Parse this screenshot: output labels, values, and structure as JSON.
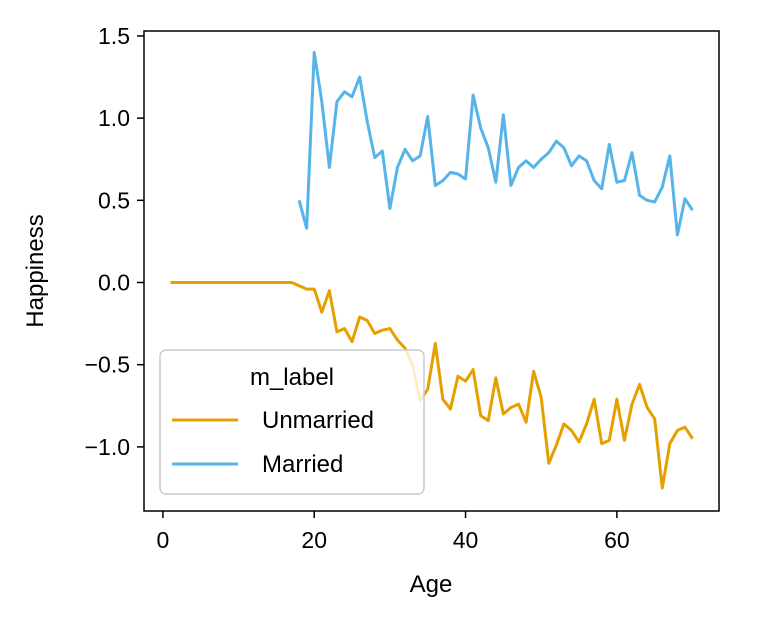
{
  "chart_data": {
    "type": "line",
    "title": "",
    "xlabel": "Age",
    "ylabel": "Happiness",
    "xlim": [
      -2.5,
      73.5
    ],
    "ylim": [
      -1.39,
      1.53
    ],
    "xticks": [
      0,
      20,
      40,
      60
    ],
    "xtick_labels": [
      "0",
      "20",
      "40",
      "60"
    ],
    "yticks": [
      1.5,
      1.0,
      0.5,
      0.0,
      -0.5,
      -1.0
    ],
    "ytick_labels": [
      "1.5",
      "1.0",
      "0.5",
      "0.0",
      "−0.5",
      "−1.0"
    ],
    "grid": false,
    "legend": {
      "title": "m_label",
      "location": "lower-left"
    },
    "series": [
      {
        "name": "Unmarried",
        "color": "#E69F00",
        "x": [
          1,
          2,
          3,
          4,
          5,
          6,
          7,
          8,
          9,
          10,
          11,
          12,
          13,
          14,
          15,
          16,
          17,
          18,
          19,
          20,
          21,
          22,
          23,
          24,
          25,
          26,
          27,
          28,
          29,
          30,
          31,
          32,
          33,
          34,
          35,
          36,
          37,
          38,
          39,
          40,
          41,
          42,
          43,
          44,
          45,
          46,
          47,
          48,
          49,
          50,
          51,
          52,
          53,
          54,
          55,
          56,
          57,
          58,
          59,
          60,
          61,
          62,
          63,
          64,
          65,
          66,
          67,
          68,
          69,
          70
        ],
        "y": [
          0,
          0,
          0,
          0,
          0,
          0,
          0,
          0,
          0,
          0,
          0,
          0,
          0,
          0,
          0,
          0,
          0,
          -0.02,
          -0.04,
          -0.04,
          -0.18,
          -0.05,
          -0.3,
          -0.28,
          -0.36,
          -0.21,
          -0.23,
          -0.31,
          -0.29,
          -0.28,
          -0.35,
          -0.4,
          -0.5,
          -0.72,
          -0.65,
          -0.37,
          -0.71,
          -0.77,
          -0.57,
          -0.6,
          -0.53,
          -0.81,
          -0.84,
          -0.58,
          -0.8,
          -0.76,
          -0.74,
          -0.85,
          -0.54,
          -0.7,
          -1.1,
          -0.99,
          -0.86,
          -0.9,
          -0.97,
          -0.86,
          -0.71,
          -0.98,
          -0.96,
          -0.71,
          -0.96,
          -0.74,
          -0.62,
          -0.76,
          -0.83,
          -1.25,
          -0.98,
          -0.9,
          -0.88,
          -0.95
        ]
      },
      {
        "name": "Married",
        "color": "#56B4E9",
        "x": [
          18,
          19,
          20,
          21,
          22,
          23,
          24,
          25,
          26,
          27,
          28,
          29,
          30,
          31,
          32,
          33,
          34,
          35,
          36,
          37,
          38,
          39,
          40,
          41,
          42,
          43,
          44,
          45,
          46,
          47,
          48,
          49,
          50,
          51,
          52,
          53,
          54,
          55,
          56,
          57,
          58,
          59,
          60,
          61,
          62,
          63,
          64,
          65,
          66,
          67,
          68,
          69,
          70
        ],
        "y": [
          0.5,
          0.33,
          1.4,
          1.1,
          0.7,
          1.1,
          1.16,
          1.13,
          1.25,
          0.98,
          0.76,
          0.8,
          0.45,
          0.7,
          0.81,
          0.74,
          0.77,
          1.01,
          0.59,
          0.62,
          0.67,
          0.66,
          0.63,
          1.14,
          0.94,
          0.82,
          0.61,
          1.02,
          0.59,
          0.7,
          0.74,
          0.7,
          0.75,
          0.79,
          0.86,
          0.82,
          0.71,
          0.77,
          0.74,
          0.62,
          0.57,
          0.84,
          0.61,
          0.62,
          0.79,
          0.53,
          0.5,
          0.49,
          0.58,
          0.77,
          0.29,
          0.51,
          0.44
        ]
      }
    ]
  }
}
